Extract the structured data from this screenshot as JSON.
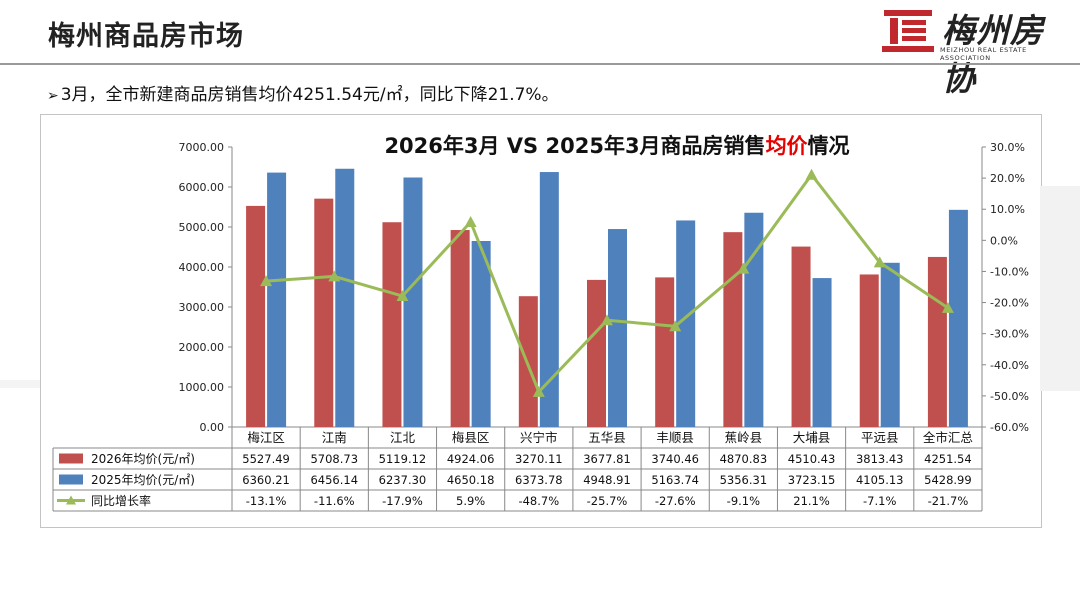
{
  "header": {
    "title": "梅州商品房市场",
    "logo_text": "梅州房协",
    "logo_sub": "MEIZHOU REAL ESTATE ASSOCIATION"
  },
  "summary": {
    "text": "3月，全市新建商品房销售均价4251.54元/㎡，同比下降21.7%。"
  },
  "colors": {
    "bar2026": "#c0504d",
    "bar2025": "#4f81bd",
    "line": "#9bbb59",
    "title_highlight": "#e60000"
  },
  "chart_data": {
    "type": "bar",
    "title_parts": [
      "2026年3月 VS 2025年3月商品房销售",
      "均价",
      "情况"
    ],
    "categories": [
      "梅江区",
      "江南",
      "江北",
      "梅县区",
      "兴宁市",
      "五华县",
      "丰顺县",
      "蕉岭县",
      "大埔县",
      "平远县",
      "全市汇总"
    ],
    "series": [
      {
        "name": "2026年均价(元/㎡)",
        "kind": "bar",
        "axis": "left",
        "values": [
          5527.49,
          5708.73,
          5119.12,
          4924.06,
          3270.11,
          3677.81,
          3740.46,
          4870.83,
          4510.43,
          3813.43,
          4251.54
        ],
        "labels": [
          "5527.49",
          "5708.73",
          "5119.12",
          "4924.06",
          "3270.11",
          "3677.81",
          "3740.46",
          "4870.83",
          "4510.43",
          "3813.43",
          "4251.54"
        ]
      },
      {
        "name": "2025年均价(元/㎡)",
        "kind": "bar",
        "axis": "left",
        "values": [
          6360.21,
          6456.14,
          6237.3,
          4650.18,
          6373.78,
          4948.91,
          5163.74,
          5356.31,
          3723.15,
          4105.13,
          5428.99
        ],
        "labels": [
          "6360.21",
          "6456.14",
          "6237.30",
          "4650.18",
          "6373.78",
          "4948.91",
          "5163.74",
          "5356.31",
          "3723.15",
          "4105.13",
          "5428.99"
        ]
      },
      {
        "name": "同比增长率",
        "kind": "line",
        "axis": "right",
        "values": [
          -13.1,
          -11.6,
          -17.9,
          5.9,
          -48.7,
          -25.7,
          -27.6,
          -9.1,
          21.1,
          -7.1,
          -21.7
        ],
        "labels": [
          "-13.1%",
          "-11.6%",
          "-17.9%",
          "5.9%",
          "-48.7%",
          "-25.7%",
          "-27.6%",
          "-9.1%",
          "21.1%",
          "-7.1%",
          "-21.7%"
        ]
      }
    ],
    "y_left": {
      "range": [
        0,
        7000
      ],
      "ticks": [
        "0.00",
        "1000.00",
        "2000.00",
        "3000.00",
        "4000.00",
        "5000.00",
        "6000.00",
        "7000.00"
      ]
    },
    "y_right": {
      "range": [
        -60,
        30
      ],
      "ticks": [
        "-60.0%",
        "-50.0%",
        "-40.0%",
        "-30.0%",
        "-20.0%",
        "-10.0%",
        "0.0%",
        "10.0%",
        "20.0%",
        "30.0%"
      ]
    },
    "grid": false,
    "legend": "data-table"
  }
}
